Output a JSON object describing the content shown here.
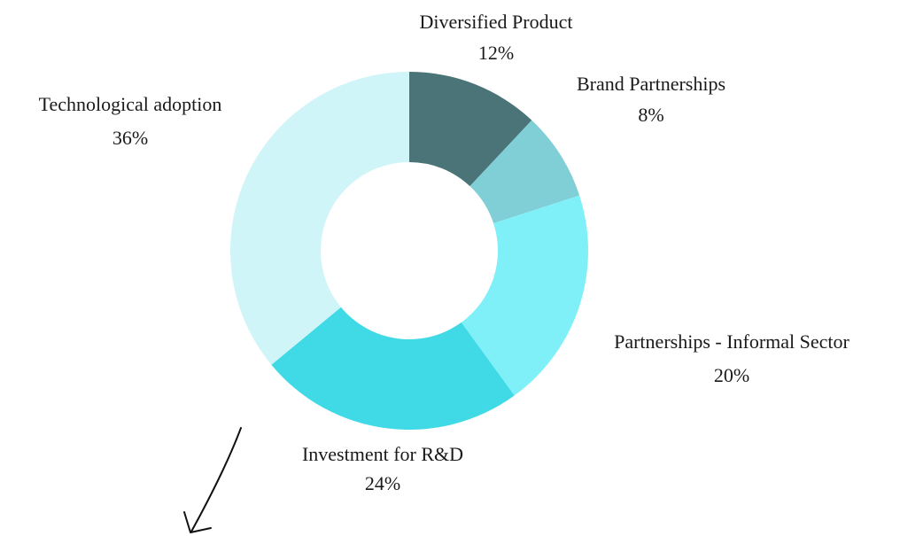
{
  "chart_data": {
    "type": "donut",
    "categories": [
      "Diversified Product",
      "Brand Partnerships",
      "Partnerships - Informal Sector",
      "Investment for R&D",
      "Technological adoption"
    ],
    "values": [
      12,
      8,
      20,
      24,
      36
    ],
    "value_labels": [
      "12%",
      "8%",
      "20%",
      "24%",
      "36%"
    ],
    "colors": [
      "#4a7478",
      "#80ced6",
      "#80f0f8",
      "#40d9e6",
      "#d0f5f8"
    ]
  }
}
